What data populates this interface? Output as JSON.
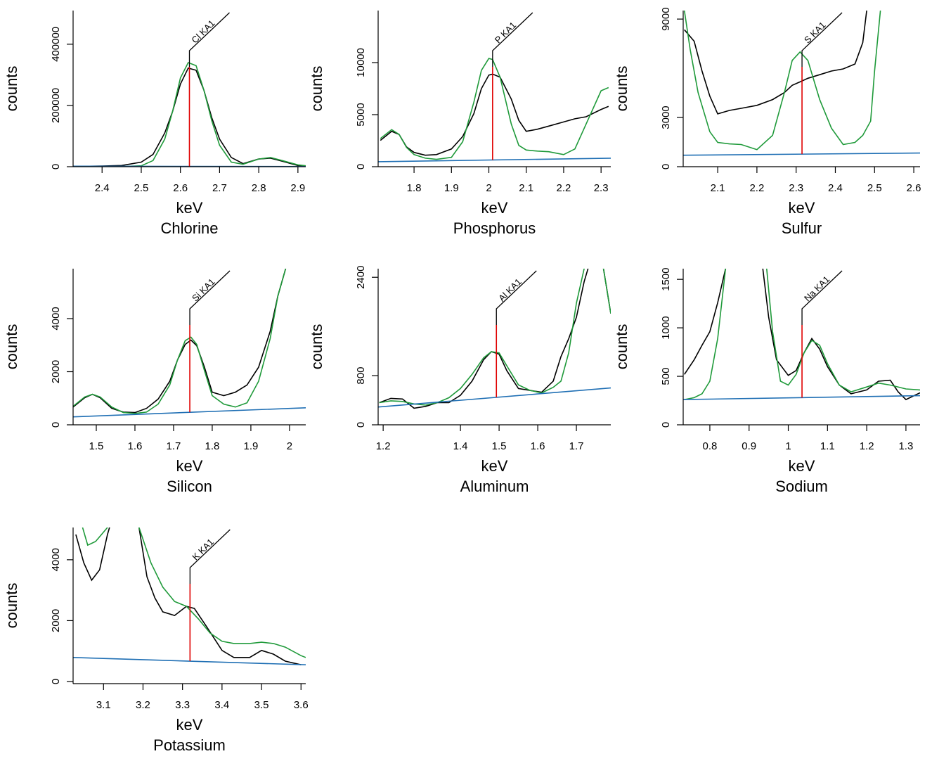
{
  "chart_data": [
    {
      "type": "line",
      "title": "Chlorine",
      "xlabel": "keV",
      "ylabel": "counts",
      "annotation": {
        "label": "Cl KA1",
        "x": 2.623
      },
      "xlim": [
        2.326,
        2.92
      ],
      "xticks": [
        2.4,
        2.5,
        2.6,
        2.7,
        2.8,
        2.9
      ],
      "ylim": [
        0,
        510000
      ],
      "yticks": [
        0,
        200000,
        400000
      ],
      "series": [
        {
          "color": "#000000",
          "x": [
            2.33,
            2.4,
            2.45,
            2.5,
            2.53,
            2.56,
            2.58,
            2.6,
            2.62,
            2.64,
            2.66,
            2.68,
            2.7,
            2.73,
            2.76,
            2.8,
            2.83,
            2.86,
            2.9,
            2.92
          ],
          "values": [
            1000,
            2000,
            4000,
            15000,
            40000,
            110000,
            180000,
            270000,
            322000,
            315000,
            250000,
            160000,
            90000,
            30000,
            10000,
            25000,
            28000,
            18000,
            4000,
            2000
          ]
        },
        {
          "color": "#1f9a3a",
          "x": [
            2.33,
            2.4,
            2.45,
            2.5,
            2.53,
            2.56,
            2.58,
            2.6,
            2.62,
            2.64,
            2.66,
            2.68,
            2.7,
            2.73,
            2.76,
            2.8,
            2.83,
            2.86,
            2.9,
            2.92
          ],
          "values": [
            0,
            0,
            500,
            3000,
            20000,
            90000,
            180000,
            290000,
            340000,
            330000,
            250000,
            150000,
            70000,
            15000,
            8000,
            25000,
            30000,
            20000,
            6000,
            3000
          ]
        },
        {
          "color": "#1f6fb4",
          "x": [
            2.326,
            2.92
          ],
          "values": [
            1500,
            500
          ]
        }
      ]
    },
    {
      "type": "line",
      "title": "Phosphorus",
      "xlabel": "keV",
      "ylabel": "counts",
      "annotation": {
        "label": "P KA1",
        "x": 2.01
      },
      "xlim": [
        1.704,
        2.326
      ],
      "xticks": [
        1.8,
        1.9,
        2,
        2.1,
        2.2,
        2.3
      ],
      "ylim": [
        0,
        15000
      ],
      "yticks": [
        0,
        5000,
        10000
      ],
      "series": [
        {
          "color": "#000000",
          "x": [
            1.71,
            1.74,
            1.76,
            1.78,
            1.8,
            1.83,
            1.86,
            1.9,
            1.93,
            1.96,
            1.98,
            2.0,
            2.01,
            2.03,
            2.06,
            2.08,
            2.1,
            2.13,
            2.16,
            2.2,
            2.23,
            2.26,
            2.3,
            2.32
          ],
          "values": [
            2530,
            3400,
            3100,
            1900,
            1370,
            1100,
            1160,
            1700,
            2900,
            5100,
            7500,
            8800,
            8900,
            8600,
            6500,
            4450,
            3400,
            3600,
            3900,
            4300,
            4600,
            4800,
            5500,
            5800
          ]
        },
        {
          "color": "#1f9a3a",
          "x": [
            1.71,
            1.74,
            1.76,
            1.78,
            1.8,
            1.83,
            1.86,
            1.9,
            1.93,
            1.96,
            1.98,
            2.0,
            2.01,
            2.03,
            2.06,
            2.08,
            2.1,
            2.13,
            2.16,
            2.2,
            2.23,
            2.26,
            2.3,
            2.32
          ],
          "values": [
            2700,
            3560,
            3100,
            1850,
            1160,
            820,
            700,
            900,
            2400,
            6200,
            9250,
            10400,
            10300,
            8600,
            4100,
            2050,
            1600,
            1500,
            1440,
            1160,
            1700,
            4100,
            7300,
            7600
          ]
        },
        {
          "color": "#1f6fb4",
          "x": [
            1.704,
            2.326
          ],
          "values": [
            480,
            820
          ]
        }
      ]
    },
    {
      "type": "line",
      "title": "Sulfur",
      "xlabel": "keV",
      "ylabel": "counts",
      "annotation": {
        "label": "S KA1",
        "x": 2.315
      },
      "xlim": [
        2.012,
        2.616
      ],
      "xticks": [
        2.1,
        2.2,
        2.3,
        2.4,
        2.5,
        2.6
      ],
      "ylim": [
        0,
        9520
      ],
      "yticks": [
        0,
        3000,
        9000
      ],
      "series": [
        {
          "color": "#000000",
          "x": [
            2.015,
            2.04,
            2.06,
            2.08,
            2.1,
            2.13,
            2.16,
            2.2,
            2.24,
            2.27,
            2.29,
            2.31,
            2.33,
            2.36,
            2.39,
            2.42,
            2.45,
            2.47,
            2.48
          ],
          "values": [
            8350,
            7650,
            5830,
            4300,
            3220,
            3430,
            3560,
            3740,
            4090,
            4520,
            4960,
            5170,
            5390,
            5610,
            5830,
            5960,
            6260,
            7570,
            9520
          ]
        },
        {
          "color": "#1f9a3a",
          "x": [
            2.015,
            2.03,
            2.05,
            2.08,
            2.1,
            2.13,
            2.16,
            2.2,
            2.24,
            2.27,
            2.29,
            2.31,
            2.33,
            2.36,
            2.39,
            2.42,
            2.45,
            2.47,
            2.49,
            2.5,
            2.515
          ],
          "values": [
            9520,
            7130,
            4520,
            2130,
            1480,
            1390,
            1350,
            1040,
            1910,
            4520,
            6480,
            7000,
            6480,
            4090,
            2350,
            1350,
            1480,
            1910,
            2780,
            5830,
            9520
          ]
        },
        {
          "color": "#1f6fb4",
          "x": [
            2.012,
            2.616
          ],
          "values": [
            700,
            830
          ]
        }
      ]
    },
    {
      "type": "line",
      "title": "Silicon",
      "xlabel": "keV",
      "ylabel": "counts",
      "annotation": {
        "label": "Si KA1",
        "x": 1.742
      },
      "xlim": [
        1.44,
        2.042
      ],
      "xticks": [
        1.5,
        1.6,
        1.7,
        1.8,
        1.9,
        2
      ],
      "ylim": [
        0,
        5880
      ],
      "yticks": [
        0,
        2000,
        4000
      ],
      "series": [
        {
          "color": "#000000",
          "x": [
            1.44,
            1.47,
            1.49,
            1.51,
            1.54,
            1.57,
            1.6,
            1.63,
            1.66,
            1.69,
            1.71,
            1.73,
            1.745,
            1.76,
            1.78,
            1.8,
            1.83,
            1.86,
            1.89,
            1.92,
            1.95,
            1.97,
            1.99
          ],
          "values": [
            670,
            1020,
            1150,
            1020,
            620,
            480,
            460,
            620,
            970,
            1640,
            2440,
            3030,
            3190,
            2980,
            2170,
            1230,
            1100,
            1230,
            1500,
            2170,
            3520,
            4860,
            5880
          ]
        },
        {
          "color": "#1f9a3a",
          "x": [
            1.44,
            1.47,
            1.49,
            1.51,
            1.54,
            1.57,
            1.6,
            1.63,
            1.66,
            1.69,
            1.71,
            1.73,
            1.745,
            1.76,
            1.78,
            1.8,
            1.83,
            1.86,
            1.89,
            1.92,
            1.95,
            1.97,
            1.99
          ],
          "values": [
            700,
            1050,
            1150,
            1050,
            670,
            460,
            430,
            480,
            780,
            1500,
            2440,
            3170,
            3300,
            3030,
            2040,
            1100,
            780,
            670,
            830,
            1640,
            3250,
            4860,
            5880
          ]
        },
        {
          "color": "#1f6fb4",
          "x": [
            1.44,
            2.042
          ],
          "values": [
            300,
            640
          ]
        }
      ]
    },
    {
      "type": "line",
      "title": "Aluminum",
      "xlabel": "keV",
      "ylabel": "counts",
      "annotation": {
        "label": "Al KA1",
        "x": 1.493
      },
      "xlim": [
        1.187,
        1.789
      ],
      "xticks": [
        1.2,
        1.4,
        1.5,
        1.6,
        1.7
      ],
      "ylim": [
        0,
        2540
      ],
      "yticks": [
        0,
        800,
        2400
      ],
      "series": [
        {
          "color": "#000000",
          "x": [
            1.19,
            1.22,
            1.25,
            1.28,
            1.31,
            1.34,
            1.37,
            1.4,
            1.43,
            1.46,
            1.48,
            1.5,
            1.52,
            1.55,
            1.58,
            1.61,
            1.64,
            1.66,
            1.68,
            1.7,
            1.72,
            1.73,
            1.75,
            1.77,
            1.789
          ],
          "values": [
            360,
            430,
            420,
            270,
            300,
            360,
            360,
            480,
            710,
            1060,
            1190,
            1150,
            880,
            590,
            560,
            530,
            710,
            1110,
            1400,
            1750,
            2330,
            2540,
            3500,
            2540,
            1810
          ]
        },
        {
          "color": "#1f9a3a",
          "x": [
            1.19,
            1.22,
            1.25,
            1.28,
            1.31,
            1.34,
            1.37,
            1.4,
            1.43,
            1.46,
            1.48,
            1.5,
            1.52,
            1.55,
            1.58,
            1.61,
            1.64,
            1.66,
            1.68,
            1.7,
            1.72,
            1.75,
            1.77,
            1.789
          ],
          "values": [
            360,
            390,
            380,
            340,
            320,
            360,
            440,
            590,
            820,
            1090,
            1190,
            1170,
            960,
            650,
            560,
            520,
            610,
            710,
            1170,
            1980,
            2540,
            3500,
            2540,
            1810
          ]
        },
        {
          "color": "#1f6fb4",
          "x": [
            1.187,
            1.789
          ],
          "values": [
            290,
            600
          ]
        }
      ]
    },
    {
      "type": "line",
      "title": "Sodium",
      "xlabel": "keV",
      "ylabel": "counts",
      "annotation": {
        "label": "Na KA1",
        "x": 1.035
      },
      "xlim": [
        0.732,
        1.336
      ],
      "xticks": [
        0.8,
        0.9,
        1,
        1.1,
        1.2,
        1.3
      ],
      "ylim": [
        0,
        1610
      ],
      "yticks": [
        0,
        500,
        1000,
        1500
      ],
      "series": [
        {
          "color": "#000000",
          "x": [
            0.735,
            0.76,
            0.78,
            0.8,
            0.82,
            0.84,
            0.85,
            0.92,
            0.935,
            0.95,
            0.97,
            1.0,
            1.02,
            1.04,
            1.06,
            1.08,
            1.1,
            1.13,
            1.16,
            1.2,
            1.23,
            1.26,
            1.28,
            1.3,
            1.336
          ],
          "values": [
            520,
            670,
            820,
            960,
            1260,
            1610,
            2500,
            2500,
            1610,
            1110,
            670,
            510,
            560,
            740,
            890,
            780,
            600,
            410,
            320,
            360,
            450,
            460,
            340,
            260,
            330
          ]
        },
        {
          "color": "#1f9a3a",
          "x": [
            0.735,
            0.76,
            0.78,
            0.8,
            0.82,
            0.84,
            0.845,
            0.93,
            0.945,
            0.96,
            0.98,
            1.0,
            1.02,
            1.04,
            1.06,
            1.08,
            1.1,
            1.13,
            1.16,
            1.2,
            1.23,
            1.26,
            1.3,
            1.336
          ],
          "values": [
            260,
            280,
            320,
            450,
            890,
            1610,
            2500,
            2500,
            1610,
            960,
            450,
            410,
            520,
            740,
            870,
            820,
            630,
            410,
            340,
            390,
            430,
            410,
            370,
            360
          ]
        },
        {
          "color": "#1f6fb4",
          "x": [
            0.732,
            1.336
          ],
          "values": [
            260,
            300
          ]
        }
      ]
    },
    {
      "type": "line",
      "title": "Potassium",
      "xlabel": "keV",
      "ylabel": "counts",
      "annotation": {
        "label": "K KA1",
        "x": 3.319
      },
      "xlim": [
        3.023,
        3.612
      ],
      "xticks": [
        3.1,
        3.2,
        3.3,
        3.4,
        3.5,
        3.6
      ],
      "ylim": [
        -70,
        5060
      ],
      "yticks": [
        0,
        2000,
        4000
      ],
      "series": [
        {
          "color": "#000000",
          "x": [
            3.03,
            3.05,
            3.07,
            3.09,
            3.11,
            3.125,
            3.18,
            3.19,
            3.21,
            3.23,
            3.25,
            3.28,
            3.31,
            3.33,
            3.36,
            3.4,
            3.43,
            3.47,
            3.5,
            3.53,
            3.56,
            3.6
          ],
          "values": [
            4830,
            3900,
            3330,
            3670,
            4830,
            5500,
            5500,
            5060,
            3440,
            2750,
            2290,
            2170,
            2470,
            2400,
            1820,
            1020,
            790,
            790,
            1020,
            900,
            670,
            550
          ]
        },
        {
          "color": "#1f9a3a",
          "x": [
            3.047,
            3.06,
            3.08,
            3.11,
            3.12,
            3.18,
            3.19,
            3.22,
            3.25,
            3.28,
            3.31,
            3.34,
            3.37,
            3.4,
            3.43,
            3.47,
            3.5,
            3.53,
            3.56,
            3.6,
            3.612
          ],
          "values": [
            5060,
            4480,
            4600,
            5060,
            5500,
            5500,
            5060,
            3900,
            3100,
            2630,
            2470,
            2060,
            1590,
            1320,
            1250,
            1250,
            1290,
            1250,
            1130,
            850,
            790
          ]
        },
        {
          "color": "#1f6fb4",
          "x": [
            3.023,
            3.612
          ],
          "values": [
            790,
            550
          ]
        }
      ]
    }
  ]
}
